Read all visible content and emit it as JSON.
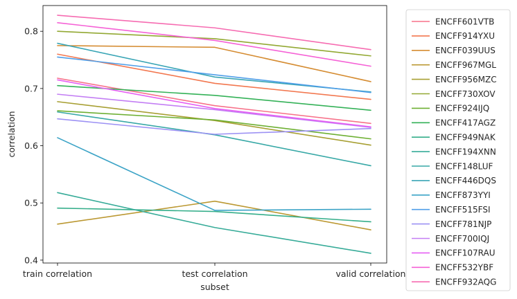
{
  "chart_data": {
    "type": "line",
    "title": "",
    "xlabel": "subset",
    "ylabel": "correlation",
    "categories": [
      "train correlation",
      "test correlation",
      "valid correlation"
    ],
    "ylim": [
      0.395,
      0.845
    ],
    "yticks": [
      "0.4",
      "0.5",
      "0.6",
      "0.7",
      "0.8"
    ],
    "grid": false,
    "legend_position": "outside-right",
    "series": [
      {
        "name": "ENCFF601VTB",
        "color": "#f77189",
        "values": [
          0.718,
          0.67,
          0.639
        ]
      },
      {
        "name": "ENCFF914YXU",
        "color": "#f2774f",
        "values": [
          0.76,
          0.709,
          0.681
        ]
      },
      {
        "name": "ENCFF039UUS",
        "color": "#d58c32",
        "values": [
          0.775,
          0.772,
          0.712
        ]
      },
      {
        "name": "ENCFF967MGL",
        "color": "#bb9832",
        "values": [
          0.463,
          0.503,
          0.453
        ]
      },
      {
        "name": "ENCFF956MZC",
        "color": "#a79f32",
        "values": [
          0.677,
          0.644,
          0.601
        ]
      },
      {
        "name": "ENCFF730XOV",
        "color": "#92a832",
        "values": [
          0.8,
          0.787,
          0.757
        ]
      },
      {
        "name": "ENCFF924IJQ",
        "color": "#6daf32",
        "values": [
          0.661,
          0.645,
          0.612
        ]
      },
      {
        "name": "ENCFF417AGZ",
        "color": "#33b157",
        "values": [
          0.705,
          0.688,
          0.662
        ]
      },
      {
        "name": "ENCFF949NAK",
        "color": "#35ae8a",
        "values": [
          0.491,
          0.485,
          0.467
        ]
      },
      {
        "name": "ENCFF194XNN",
        "color": "#36ab98",
        "values": [
          0.518,
          0.457,
          0.412
        ]
      },
      {
        "name": "ENCFF148LUF",
        "color": "#37a8a6",
        "values": [
          0.659,
          0.619,
          0.565
        ]
      },
      {
        "name": "ENCFF446DQS",
        "color": "#39a5b5",
        "values": [
          0.779,
          0.72,
          0.694
        ]
      },
      {
        "name": "ENCFF873YYI",
        "color": "#3ba3c6",
        "values": [
          0.614,
          0.487,
          0.489
        ]
      },
      {
        "name": "ENCFF515FSI",
        "color": "#4f9ee8",
        "values": [
          0.755,
          0.724,
          0.693
        ]
      },
      {
        "name": "ENCFF781NJP",
        "color": "#9c91f4",
        "values": [
          0.647,
          0.62,
          0.63
        ]
      },
      {
        "name": "ENCFF700IQJ",
        "color": "#c37ef4",
        "values": [
          0.69,
          0.663,
          0.632
        ]
      },
      {
        "name": "ENCFF107RAU",
        "color": "#e65ef4",
        "values": [
          0.715,
          0.665,
          0.633
        ]
      },
      {
        "name": "ENCFF532YBF",
        "color": "#f561d6",
        "values": [
          0.815,
          0.784,
          0.739
        ]
      },
      {
        "name": "ENCFF932AQG",
        "color": "#f66bb1",
        "values": [
          0.828,
          0.806,
          0.768
        ]
      }
    ]
  }
}
